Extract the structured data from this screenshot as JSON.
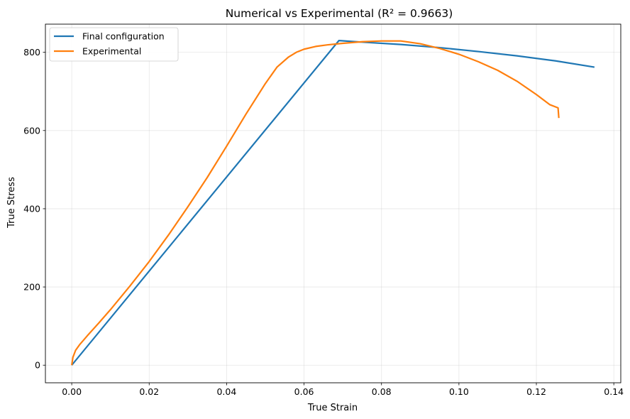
{
  "chart_data": {
    "type": "line",
    "title": "Numerical vs Experimental (R² = 0.9663)",
    "xlabel": "True Strain",
    "ylabel": "True Stress",
    "xlim": [
      -0.0068,
      0.1418
    ],
    "ylim": [
      -45,
      872
    ],
    "xticks": [
      0.0,
      0.02,
      0.04,
      0.06,
      0.08,
      0.1,
      0.12,
      0.14
    ],
    "xtick_labels": [
      "0.00",
      "0.02",
      "0.04",
      "0.06",
      "0.08",
      "0.10",
      "0.12",
      "0.14"
    ],
    "yticks": [
      0,
      200,
      400,
      600,
      800
    ],
    "ytick_labels": [
      "0",
      "200",
      "400",
      "600",
      "800"
    ],
    "grid": true,
    "legend_position": "top-left",
    "series": [
      {
        "name": "Final configuration",
        "color": "#1f77b4",
        "x": [
          0.0,
          0.069,
          0.075,
          0.085,
          0.095,
          0.105,
          0.115,
          0.125,
          0.135
        ],
        "y": [
          0,
          830,
          826,
          820,
          812,
          802,
          791,
          778,
          762
        ]
      },
      {
        "name": "Experimental",
        "color": "#ff7f0e",
        "x": [
          0.0,
          0.0003,
          0.001,
          0.002,
          0.004,
          0.007,
          0.01,
          0.015,
          0.02,
          0.025,
          0.03,
          0.035,
          0.04,
          0.045,
          0.05,
          0.053,
          0.056,
          0.058,
          0.06,
          0.063,
          0.066,
          0.07,
          0.075,
          0.08,
          0.085,
          0.09,
          0.095,
          0.1,
          0.105,
          0.11,
          0.115,
          0.12,
          0.1235,
          0.1256,
          0.1257,
          0.1258
        ],
        "y": [
          0,
          20,
          38,
          52,
          75,
          108,
          142,
          202,
          265,
          333,
          405,
          480,
          560,
          642,
          720,
          762,
          788,
          800,
          808,
          815,
          819,
          823,
          827,
          829,
          829,
          822,
          810,
          795,
          776,
          754,
          726,
          692,
          666,
          658,
          645,
          632
        ]
      }
    ]
  }
}
